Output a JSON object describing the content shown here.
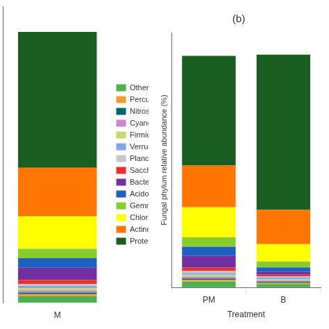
{
  "chart_data": [
    {
      "type": "bar",
      "stacked": true,
      "categories": [
        "M"
      ],
      "series": [
        {
          "name": "Others",
          "color": "#4caf50",
          "values": [
            2.5
          ]
        },
        {
          "name": "Percubacteria",
          "color": "#f0a030",
          "values": [
            0.8
          ]
        },
        {
          "name": "Nitrospirae",
          "color": "#006868",
          "values": [
            0.6
          ]
        },
        {
          "name": "Cyanobacteria",
          "color": "#cc88cc",
          "values": [
            0.8
          ]
        },
        {
          "name": "Firmicutes",
          "color": "#c8d870",
          "values": [
            0.8
          ]
        },
        {
          "name": "Verrucomicrobia",
          "color": "#80a8e8",
          "values": [
            0.8
          ]
        },
        {
          "name": "Planctomycetes",
          "color": "#c8c8c8",
          "values": [
            0.8
          ]
        },
        {
          "name": "Saccharibacteria",
          "color": "#e83030",
          "values": [
            1.5
          ]
        },
        {
          "name": "Bacteroidetes",
          "color": "#7030a0",
          "values": [
            4.5
          ]
        },
        {
          "name": "Acidobacteria",
          "color": "#2060c0",
          "values": [
            3.5
          ]
        },
        {
          "name": "Gemmatimonadetes",
          "color": "#88cc30",
          "values": [
            3.5
          ]
        },
        {
          "name": "Chloroflexi",
          "color": "#ffff00",
          "values": [
            12.0
          ]
        },
        {
          "name": "Actinobacteria",
          "color": "#ff7700",
          "values": [
            18.0
          ]
        },
        {
          "name": "Proteobacteria",
          "color": "#1a5e20",
          "values": [
            50.4
          ]
        }
      ],
      "ylim": [
        0,
        110
      ],
      "yticks": [],
      "grid": false,
      "legend": "right",
      "tick_labels": "x"
    },
    {
      "type": "bar",
      "title": "(b)",
      "xlabel": "Treatment",
      "ylabel": "Fungal phylum relative abundance (%)",
      "stacked": true,
      "categories": [
        "PM",
        "B"
      ],
      "series": [
        {
          "name": "Others",
          "color": "#4caf50",
          "values": [
            2.5,
            1.5
          ]
        },
        {
          "name": "Percubacteria",
          "color": "#f0a030",
          "values": [
            0.8,
            0.5
          ]
        },
        {
          "name": "Nitrospirae",
          "color": "#006868",
          "values": [
            0.6,
            0.5
          ]
        },
        {
          "name": "Cyanobacteria",
          "color": "#cc88cc",
          "values": [
            0.8,
            0.5
          ]
        },
        {
          "name": "Firmicutes",
          "color": "#c8d870",
          "values": [
            0.8,
            0.5
          ]
        },
        {
          "name": "Verrucomicrobia",
          "color": "#80a8e8",
          "values": [
            0.8,
            0.8
          ]
        },
        {
          "name": "Planctomycetes",
          "color": "#c8c8c8",
          "values": [
            0.8,
            0.5
          ]
        },
        {
          "name": "Saccharibacteria",
          "color": "#e83030",
          "values": [
            1.5,
            0.7
          ]
        },
        {
          "name": "Bacteroidetes",
          "color": "#7030a0",
          "values": [
            5.0,
            1.2
          ]
        },
        {
          "name": "Acidobacteria",
          "color": "#2060c0",
          "values": [
            4.0,
            2.0
          ]
        },
        {
          "name": "Gemmatimonadetes",
          "color": "#88cc30",
          "values": [
            4.0,
            2.5
          ]
        },
        {
          "name": "Chloroflexi",
          "color": "#ffff00",
          "values": [
            13.0,
            7.5
          ]
        },
        {
          "name": "Actinobacteria",
          "color": "#ff7700",
          "values": [
            18.0,
            14.8
          ]
        },
        {
          "name": "Proteobacteria",
          "color": "#1a5e20",
          "values": [
            47.4,
            67.0
          ]
        }
      ],
      "ylim": [
        0,
        110
      ],
      "yticks": [],
      "grid": false,
      "tick_labels": "x"
    }
  ]
}
